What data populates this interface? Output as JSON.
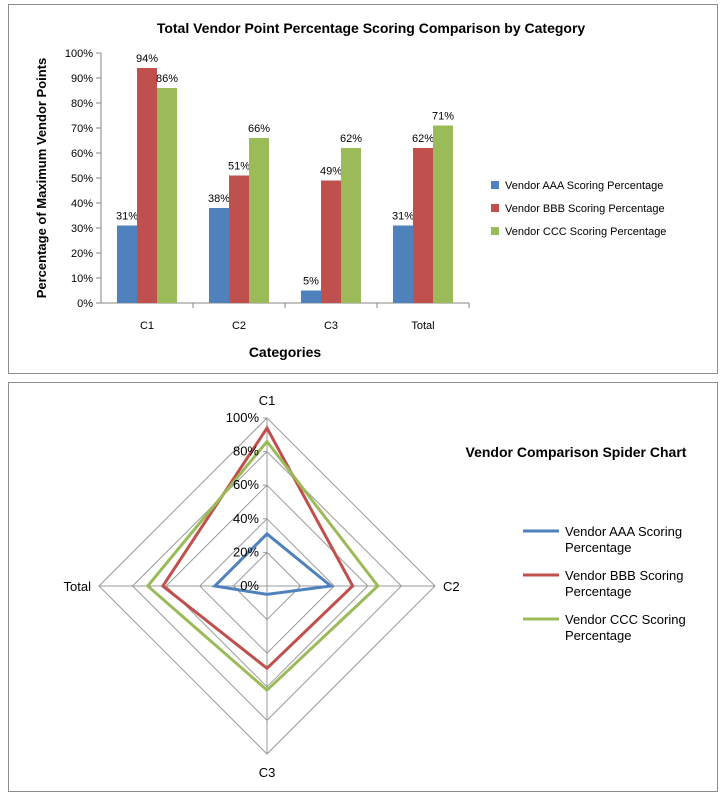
{
  "chart_data": [
    {
      "type": "bar",
      "title": "Total Vendor Point  Percentage Scoring Comparison by Category",
      "xlabel": "Categories",
      "ylabel": "Percentage of Maximum Vendor Points",
      "categories": [
        "C1",
        "C2",
        "C3",
        "Total"
      ],
      "ylim": [
        0,
        100
      ],
      "yticks": [
        "0%",
        "10%",
        "20%",
        "30%",
        "40%",
        "50%",
        "60%",
        "70%",
        "80%",
        "90%",
        "100%"
      ],
      "legend_position": "right",
      "series": [
        {
          "name": "Vendor AAA  Scoring Percentage",
          "color": "#4f81bd",
          "values": [
            31,
            38,
            5,
            31
          ],
          "labels": [
            "31%",
            "38%",
            "5%",
            "31%"
          ]
        },
        {
          "name": "Vendor BBB  Scoring Percentage",
          "color": "#c0504d",
          "values": [
            94,
            51,
            49,
            62
          ],
          "labels": [
            "94%",
            "51%",
            "49%",
            "62%"
          ]
        },
        {
          "name": "Vendor CCC  Scoring Percentage",
          "color": "#9bbb59",
          "values": [
            86,
            66,
            62,
            71
          ],
          "labels": [
            "86%",
            "66%",
            "62%",
            "71%"
          ]
        }
      ]
    },
    {
      "type": "radar",
      "title": "Vendor Comparison Spider Chart",
      "axes": [
        "C1",
        "C2",
        "C3",
        "Total"
      ],
      "rlim": [
        0,
        100
      ],
      "rticks": [
        "0%",
        "20%",
        "40%",
        "60%",
        "80%",
        "100%"
      ],
      "legend_position": "right",
      "series": [
        {
          "name": "Vendor AAA  Scoring Percentage",
          "color": "#4f81bd",
          "values": [
            31,
            38,
            5,
            31
          ]
        },
        {
          "name": "Vendor BBB  Scoring Percentage",
          "color": "#c0504d",
          "values": [
            94,
            51,
            49,
            62
          ]
        },
        {
          "name": "Vendor CCC  Scoring Percentage",
          "color": "#9bbb59",
          "values": [
            86,
            66,
            62,
            71
          ]
        }
      ]
    }
  ]
}
